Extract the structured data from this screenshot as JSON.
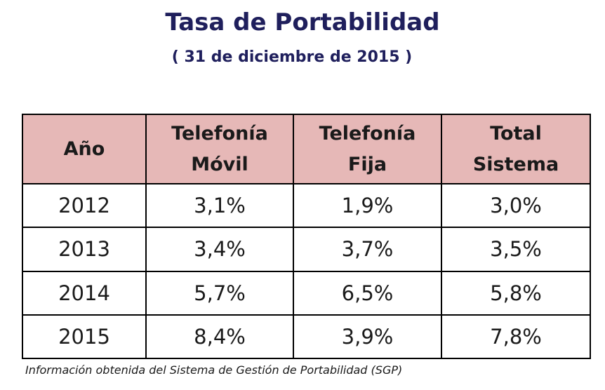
{
  "title": "Tasa de Portabilidad",
  "subtitle": "( 31 de diciembre de 2015 )",
  "footnote": "Información obtenida del Sistema de Gestión de Portabilidad (SGP)",
  "colors": {
    "title": "#1f1f5c",
    "header_bg": "#e6b8b7",
    "border": "#000000"
  },
  "chart_data": {
    "type": "table",
    "columns": [
      [
        "Año"
      ],
      [
        "Telefonía",
        "Móvil"
      ],
      [
        "Telefonía",
        "Fija"
      ],
      [
        "Total",
        "Sistema"
      ]
    ],
    "rows": [
      [
        "2012",
        "3,1%",
        "1,9%",
        "3,0%"
      ],
      [
        "2013",
        "3,4%",
        "3,7%",
        "3,5%"
      ],
      [
        "2014",
        "5,7%",
        "6,5%",
        "5,8%"
      ],
      [
        "2015",
        "8,4%",
        "3,9%",
        "7,8%"
      ]
    ]
  }
}
